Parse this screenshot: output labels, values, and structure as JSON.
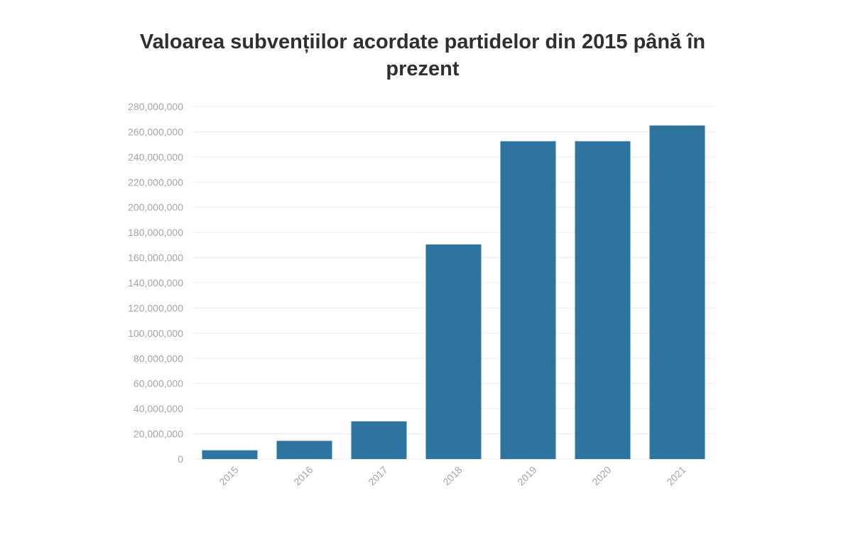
{
  "chart_data": {
    "type": "bar",
    "title": "Valoarea subvențiilor acordate partidelor din 2015 până în prezent",
    "xlabel": "",
    "ylabel": "",
    "categories": [
      "2015",
      "2016",
      "2017",
      "2018",
      "2019",
      "2020",
      "2021"
    ],
    "values": [
      7000000,
      14500000,
      30000000,
      170500000,
      252500000,
      252500000,
      265000000
    ],
    "ylim": [
      0,
      280000000
    ],
    "yticks": [
      0,
      20000000,
      40000000,
      60000000,
      80000000,
      100000000,
      120000000,
      140000000,
      160000000,
      180000000,
      200000000,
      220000000,
      240000000,
      260000000,
      280000000
    ],
    "ytick_labels": [
      "0",
      "20,000,000",
      "40,000,000",
      "60,000,000",
      "80,000,000",
      "100,000,000",
      "120,000,000",
      "140,000,000",
      "160,000,000",
      "180,000,000",
      "200,000,000",
      "220,000,000",
      "240,000,000",
      "260,000,000",
      "280,000,000"
    ],
    "grid": true,
    "legend": "none",
    "bar_color": "#2e74a0"
  }
}
